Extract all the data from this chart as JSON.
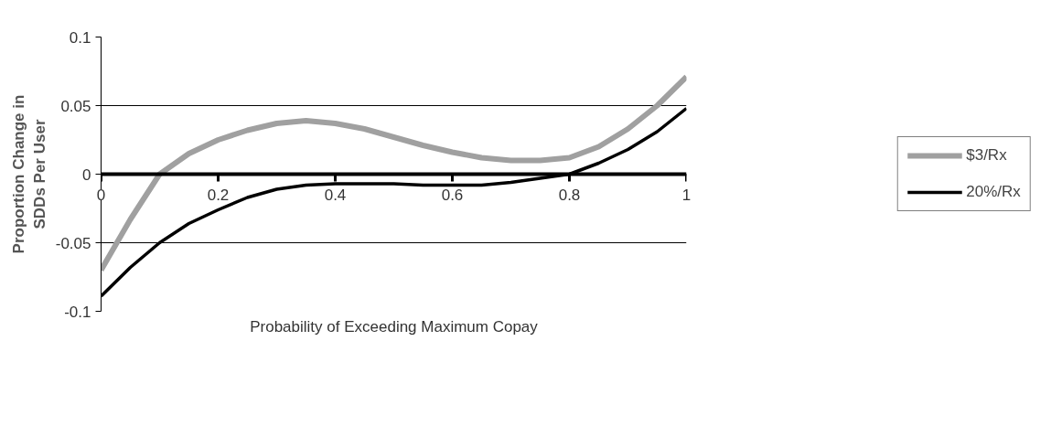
{
  "chart_data": {
    "type": "line",
    "xlabel": "Probability of Exceeding Maximum Copay",
    "ylabel": "Proportion Change in SDDs Per User",
    "x": [
      0,
      0.05,
      0.1,
      0.15,
      0.2,
      0.25,
      0.3,
      0.35,
      0.4,
      0.45,
      0.5,
      0.55,
      0.6,
      0.65,
      0.7,
      0.75,
      0.8,
      0.85,
      0.9,
      0.95,
      1
    ],
    "series": [
      {
        "name": "$3/Rx",
        "color": "#a0a0a0",
        "values": [
          -0.07,
          -0.033,
          0.0,
          0.015,
          0.025,
          0.032,
          0.037,
          0.039,
          0.037,
          0.033,
          0.027,
          0.021,
          0.016,
          0.012,
          0.01,
          0.01,
          0.012,
          0.02,
          0.033,
          0.05,
          0.071
        ]
      },
      {
        "name": "20%/Rx",
        "color": "#000000",
        "values": [
          -0.089,
          -0.068,
          -0.05,
          -0.036,
          -0.026,
          -0.017,
          -0.011,
          -0.008,
          -0.007,
          -0.007,
          -0.007,
          -0.008,
          -0.008,
          -0.008,
          -0.006,
          -0.003,
          0.0,
          0.008,
          0.018,
          0.031,
          0.048
        ]
      }
    ],
    "xlim": [
      0,
      1
    ],
    "xticks": [
      0,
      0.2,
      0.4,
      0.6,
      0.8,
      1
    ],
    "ylim": [
      -0.1,
      0.1
    ],
    "yticks": [
      -0.1,
      -0.05,
      0,
      0.05,
      0.1
    ],
    "grid": "y",
    "legend": "right",
    "marker": "none",
    "line_style": "solid"
  }
}
